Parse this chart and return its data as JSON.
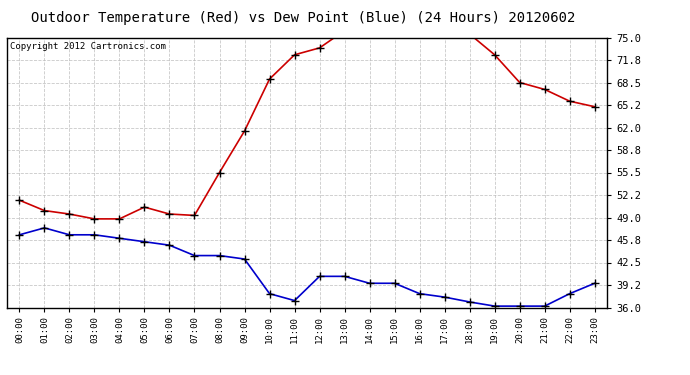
{
  "title": "Outdoor Temperature (Red) vs Dew Point (Blue) (24 Hours) 20120602",
  "copyright": "Copyright 2012 Cartronics.com",
  "hours": [
    "00:00",
    "01:00",
    "02:00",
    "03:00",
    "04:00",
    "05:00",
    "06:00",
    "07:00",
    "08:00",
    "09:00",
    "10:00",
    "11:00",
    "12:00",
    "13:00",
    "14:00",
    "15:00",
    "16:00",
    "17:00",
    "18:00",
    "19:00",
    "20:00",
    "21:00",
    "22:00",
    "23:00"
  ],
  "temp_red": [
    51.5,
    50.0,
    49.5,
    48.8,
    48.8,
    50.5,
    49.5,
    49.3,
    55.5,
    61.5,
    69.0,
    72.5,
    73.5,
    76.0,
    76.0,
    76.0,
    76.0,
    76.0,
    75.5,
    72.5,
    68.5,
    67.5,
    65.8,
    65.0
  ],
  "dew_blue": [
    46.5,
    47.5,
    46.5,
    46.5,
    46.0,
    45.5,
    45.0,
    43.5,
    43.5,
    43.0,
    38.0,
    37.0,
    40.5,
    40.5,
    39.5,
    39.5,
    38.0,
    37.5,
    36.8,
    36.2,
    36.2,
    36.2,
    38.0,
    39.5
  ],
  "ylim": [
    36.0,
    75.0
  ],
  "yticks": [
    36.0,
    39.2,
    42.5,
    45.8,
    49.0,
    52.2,
    55.5,
    58.8,
    62.0,
    65.2,
    68.5,
    71.8,
    75.0
  ],
  "line_color_red": "#cc0000",
  "line_color_blue": "#0000cc",
  "marker": "+",
  "bg_color": "#ffffff",
  "grid_color": "#bbbbbb",
  "title_fontsize": 10,
  "copyright_fontsize": 6.5
}
